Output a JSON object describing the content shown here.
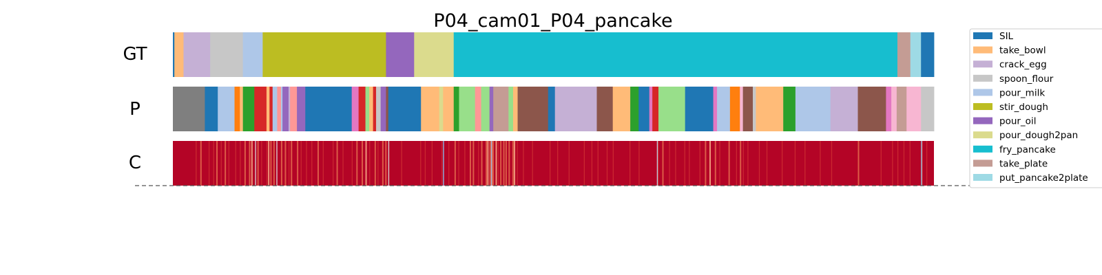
{
  "chart_data": {
    "type": "heatmap",
    "title": "P04_cam01_P04_pancake",
    "x_range": [
      0,
      1000
    ],
    "legend_position": "upper-right",
    "classes": [
      {
        "name": "SIL",
        "color": "#1f77b4"
      },
      {
        "name": "take_bowl",
        "color": "#ffbb78"
      },
      {
        "name": "crack_egg",
        "color": "#c5b0d5"
      },
      {
        "name": "spoon_flour",
        "color": "#c7c7c7"
      },
      {
        "name": "pour_milk",
        "color": "#aec7e8"
      },
      {
        "name": "stir_dough",
        "color": "#bcbd22"
      },
      {
        "name": "pour_oil",
        "color": "#9467bd"
      },
      {
        "name": "pour_dough2pan",
        "color": "#dbdb8d"
      },
      {
        "name": "fry_pancake",
        "color": "#17becf"
      },
      {
        "name": "take_plate",
        "color": "#c49c94"
      },
      {
        "name": "put_pancake2plate",
        "color": "#9edae5"
      }
    ],
    "rows": [
      {
        "label": "GT",
        "kind": "segments",
        "segments": [
          [
            0,
            2,
            "#1f77b4"
          ],
          [
            2,
            14,
            "#ffbb78"
          ],
          [
            14,
            49,
            "#c5b0d5"
          ],
          [
            49,
            92,
            "#c7c7c7"
          ],
          [
            92,
            118,
            "#aec7e8"
          ],
          [
            118,
            280,
            "#bcbd22"
          ],
          [
            280,
            317,
            "#9467bd"
          ],
          [
            317,
            369,
            "#dbdb8d"
          ],
          [
            369,
            952,
            "#17becf"
          ],
          [
            952,
            969,
            "#c49c94"
          ],
          [
            969,
            983,
            "#9edae5"
          ],
          [
            983,
            1000,
            "#1f77b4"
          ]
        ]
      },
      {
        "label": "P",
        "kind": "segments",
        "segments": [
          [
            0,
            42,
            "#7f7f7f"
          ],
          [
            42,
            59,
            "#1f77b4"
          ],
          [
            59,
            81,
            "#aec7e8"
          ],
          [
            81,
            88,
            "#ff7f0e"
          ],
          [
            88,
            92,
            "#ffbb78"
          ],
          [
            92,
            107,
            "#2ca02c"
          ],
          [
            107,
            123,
            "#d62728"
          ],
          [
            123,
            127,
            "#ffbb78"
          ],
          [
            127,
            131,
            "#d62728"
          ],
          [
            131,
            137,
            "#aec7e8"
          ],
          [
            137,
            142,
            "#ff9896"
          ],
          [
            142,
            144,
            "#aec7e8"
          ],
          [
            144,
            152,
            "#9467bd"
          ],
          [
            152,
            154,
            "#c5b0d5"
          ],
          [
            154,
            163,
            "#ff9896"
          ],
          [
            163,
            174,
            "#9467bd"
          ],
          [
            174,
            235,
            "#1f77b4"
          ],
          [
            235,
            244,
            "#e377c2"
          ],
          [
            244,
            253,
            "#d62728"
          ],
          [
            253,
            258,
            "#98df8a"
          ],
          [
            258,
            263,
            "#ffbb78"
          ],
          [
            263,
            267,
            "#d62728"
          ],
          [
            267,
            273,
            "#c7c7c7"
          ],
          [
            273,
            280,
            "#9467bd"
          ],
          [
            280,
            283,
            "#8c564b"
          ],
          [
            283,
            326,
            "#1f77b4"
          ],
          [
            326,
            350,
            "#ffbb78"
          ],
          [
            350,
            355,
            "#dbdb8d"
          ],
          [
            355,
            369,
            "#ffbb78"
          ],
          [
            369,
            376,
            "#2ca02c"
          ],
          [
            376,
            397,
            "#98df8a"
          ],
          [
            397,
            405,
            "#ff9896"
          ],
          [
            405,
            416,
            "#98df8a"
          ],
          [
            416,
            421,
            "#9467bd"
          ],
          [
            421,
            441,
            "#c49c94"
          ],
          [
            441,
            447,
            "#98df8a"
          ],
          [
            447,
            453,
            "#ffbb78"
          ],
          [
            453,
            493,
            "#8c564b"
          ],
          [
            493,
            502,
            "#1f77b4"
          ],
          [
            502,
            557,
            "#c5b0d5"
          ],
          [
            557,
            578,
            "#8c564b"
          ],
          [
            578,
            601,
            "#ffbb78"
          ],
          [
            601,
            612,
            "#2ca02c"
          ],
          [
            612,
            626,
            "#1f77b4"
          ],
          [
            626,
            630,
            "#e377c2"
          ],
          [
            630,
            638,
            "#d62728"
          ],
          [
            638,
            673,
            "#98df8a"
          ],
          [
            673,
            710,
            "#1f77b4"
          ],
          [
            710,
            715,
            "#e377c2"
          ],
          [
            715,
            732,
            "#aec7e8"
          ],
          [
            732,
            745,
            "#ff7f0e"
          ],
          [
            745,
            749,
            "#f7b6d2"
          ],
          [
            749,
            762,
            "#8c564b"
          ],
          [
            762,
            766,
            "#c7c7c7"
          ],
          [
            766,
            802,
            "#ffbb78"
          ],
          [
            802,
            818,
            "#2ca02c"
          ],
          [
            818,
            864,
            "#aec7e8"
          ],
          [
            864,
            900,
            "#c5b0d5"
          ],
          [
            900,
            937,
            "#8c564b"
          ],
          [
            937,
            944,
            "#e377c2"
          ],
          [
            944,
            951,
            "#f7b6d2"
          ],
          [
            951,
            964,
            "#c49c94"
          ],
          [
            964,
            983,
            "#f7b6d2"
          ],
          [
            983,
            1000,
            "#c7c7c7"
          ]
        ]
      },
      {
        "label": "C",
        "kind": "confidence",
        "base_color": "#b40426",
        "marks": [
          [
            30,
            0.4
          ],
          [
            36,
            0.5
          ],
          [
            47,
            0.35
          ],
          [
            53,
            0.45
          ],
          [
            57,
            0.55
          ],
          [
            63,
            0.4
          ],
          [
            68,
            0.6
          ],
          [
            73,
            0.35
          ],
          [
            82,
            0.3
          ],
          [
            88,
            0.4
          ],
          [
            94,
            0.55
          ],
          [
            100,
            0.5
          ],
          [
            103,
            0.7
          ],
          [
            108,
            0.85
          ],
          [
            111,
            0.6
          ],
          [
            116,
            0.45
          ],
          [
            123,
            0.3
          ],
          [
            125,
            0.8
          ],
          [
            128,
            0.5
          ],
          [
            132,
            0.65
          ],
          [
            136,
            0.9
          ],
          [
            142,
            0.5
          ],
          [
            147,
            0.6
          ],
          [
            152,
            0.3
          ],
          [
            155,
            0.55
          ],
          [
            163,
            0.5
          ],
          [
            168,
            0.35
          ],
          [
            175,
            0.4
          ],
          [
            182,
            0.3
          ],
          [
            190,
            0.5
          ],
          [
            197,
            0.4
          ],
          [
            210,
            0.3
          ],
          [
            215,
            0.55
          ],
          [
            223,
            0.35
          ],
          [
            235,
            0.45
          ],
          [
            241,
            0.6
          ],
          [
            248,
            0.5
          ],
          [
            253,
            0.7
          ],
          [
            258,
            0.4
          ],
          [
            265,
            0.55
          ],
          [
            269,
            0.45
          ],
          [
            275,
            0.5
          ],
          [
            279,
            0.6
          ],
          [
            283,
            0.9
          ],
          [
            300,
            0.35
          ],
          [
            325,
            0.35
          ],
          [
            331,
            0.4
          ],
          [
            340,
            0.35
          ],
          [
            353,
            0.45
          ],
          [
            355,
            0.9
          ],
          [
            362,
            0.3
          ],
          [
            370,
            0.5
          ],
          [
            375,
            0.4
          ],
          [
            383,
            0.3
          ],
          [
            390,
            0.6
          ],
          [
            394,
            0.55
          ],
          [
            401,
            0.4
          ],
          [
            405,
            0.5
          ],
          [
            411,
            0.5
          ],
          [
            413,
            0.75
          ],
          [
            416,
            0.55
          ],
          [
            418,
            0.8
          ],
          [
            420,
            0.6
          ],
          [
            424,
            0.7
          ],
          [
            427,
            0.45
          ],
          [
            430,
            0.5
          ],
          [
            434,
            0.55
          ],
          [
            437,
            0.65
          ],
          [
            441,
            0.5
          ],
          [
            446,
            0.55
          ],
          [
            448,
            0.7
          ],
          [
            452,
            0.35
          ],
          [
            460,
            0.35
          ],
          [
            472,
            0.35
          ],
          [
            495,
            0.35
          ],
          [
            505,
            0.3
          ],
          [
            520,
            0.35
          ],
          [
            540,
            0.3
          ],
          [
            550,
            0.35
          ],
          [
            558,
            0.3
          ],
          [
            570,
            0.35
          ],
          [
            578,
            0.4
          ],
          [
            600,
            0.3
          ],
          [
            612,
            0.35
          ],
          [
            636,
            0.6
          ],
          [
            643,
            0.5
          ],
          [
            652,
            0.35
          ],
          [
            660,
            0.4
          ],
          [
            672,
            0.3
          ],
          [
            678,
            0.35
          ],
          [
            692,
            0.4
          ],
          [
            699,
            0.5
          ],
          [
            705,
            0.75
          ],
          [
            712,
            0.5
          ],
          [
            718,
            0.4
          ],
          [
            730,
            0.55
          ],
          [
            740,
            0.4
          ],
          [
            745,
            0.5
          ],
          [
            749,
            0.45
          ],
          [
            755,
            0.35
          ],
          [
            770,
            0.3
          ],
          [
            780,
            0.4
          ],
          [
            800,
            0.35
          ],
          [
            817,
            0.4
          ],
          [
            830,
            0.35
          ],
          [
            850,
            0.3
          ],
          [
            865,
            0.35
          ],
          [
            900,
            0.5
          ],
          [
            930,
            0.4
          ],
          [
            945,
            0.45
          ],
          [
            952,
            0.4
          ],
          [
            960,
            0.45
          ],
          [
            968,
            0.45
          ],
          [
            983,
            0.8
          ],
          [
            990,
            0.4
          ]
        ]
      }
    ]
  }
}
